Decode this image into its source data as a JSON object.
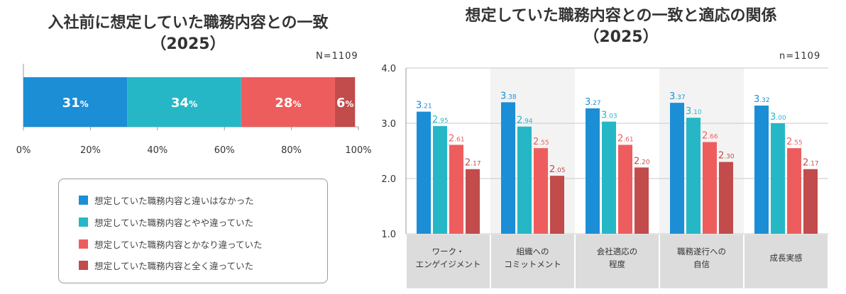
{
  "colors": {
    "series1": "#1c8ed6",
    "series2": "#26b7c7",
    "series3": "#ee5d5d",
    "series4": "#c24b4b",
    "band": "#f3f3f3",
    "category_bg": "#dcdcdc"
  },
  "chart_data": [
    {
      "type": "bar",
      "orientation": "horizontal-stacked",
      "title": "入社前に想定していた職務内容との一致",
      "subtitle": "（2025）",
      "n_label": "N=1109",
      "series": [
        {
          "name": "想定していた職務内容と違いはなかった",
          "value": 31,
          "label": "31%"
        },
        {
          "name": "想定していた職務内容とやや違っていた",
          "value": 34,
          "label": "34%"
        },
        {
          "name": "想定していた職務内容とかなり違っていた",
          "value": 28,
          "label": "28%"
        },
        {
          "name": "想定していた職務内容と全く違っていた",
          "value": 6,
          "label": "6%"
        }
      ],
      "xlim": [
        0,
        100
      ],
      "xticks": [
        "0%",
        "20%",
        "40%",
        "60%",
        "80%",
        "100%"
      ],
      "legend_position": "bottom"
    },
    {
      "type": "bar",
      "orientation": "vertical-grouped",
      "title": "想定していた職務内容との一致と適応の関係",
      "subtitle": "（2025）",
      "n_label": "n=1109",
      "ylim": [
        1.0,
        4.0
      ],
      "yticks": [
        "1.0",
        "2.0",
        "3.0",
        "4.0"
      ],
      "categories": [
        [
          "ワーク・",
          "エンゲイジメント"
        ],
        [
          "組織への",
          "コミットメント"
        ],
        [
          "会社適応の",
          "程度"
        ],
        [
          "職務遂行への",
          "自信"
        ],
        [
          "成長実感"
        ]
      ],
      "series": [
        {
          "name": "想定していた職務内容と違いはなかった",
          "values": [
            3.21,
            3.38,
            3.27,
            3.37,
            3.32
          ],
          "labels": [
            "3.21",
            "3.38",
            "3.27",
            "3.37",
            "3.32"
          ]
        },
        {
          "name": "想定していた職務内容とやや違っていた",
          "values": [
            2.95,
            2.94,
            3.03,
            3.1,
            3.0
          ],
          "labels": [
            "2.95",
            "2.94",
            "3.03",
            "3.10",
            "3.00"
          ]
        },
        {
          "name": "想定していた職務内容とかなり違っていた",
          "values": [
            2.61,
            2.55,
            2.61,
            2.66,
            2.55
          ],
          "labels": [
            "2.61",
            "2.55",
            "2.61",
            "2.66",
            "2.55"
          ]
        },
        {
          "name": "想定していた職務内容と全く違っていた",
          "values": [
            2.17,
            2.05,
            2.2,
            2.3,
            2.17
          ],
          "labels": [
            "2.17",
            "2.05",
            "2.20",
            "2.30",
            "2.17"
          ]
        }
      ]
    }
  ]
}
